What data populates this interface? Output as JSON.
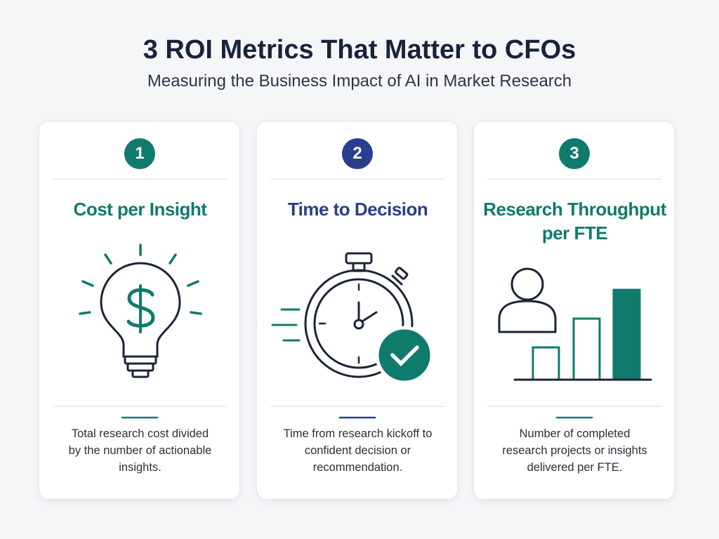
{
  "header": {
    "title": "3 ROI Metrics That Matter to CFOs",
    "subtitle": "Measuring the Business Impact of AI in Market Research"
  },
  "cards": [
    {
      "number": 1,
      "title": "Cost per Insight",
      "description": "Total research cost divided by the number of actionable insights.",
      "color": "#0f7b6c"
    },
    {
      "number": 2,
      "title": "Time to Decision",
      "description": "Time from research kickoff to confident decision or recommendation.",
      "color": "#283f8c"
    },
    {
      "number": 3,
      "title": "Research Throughput per FTE",
      "description": "Number of completed research projects or insights delivered per FTE.",
      "color": "#0f7b6c"
    }
  ]
}
